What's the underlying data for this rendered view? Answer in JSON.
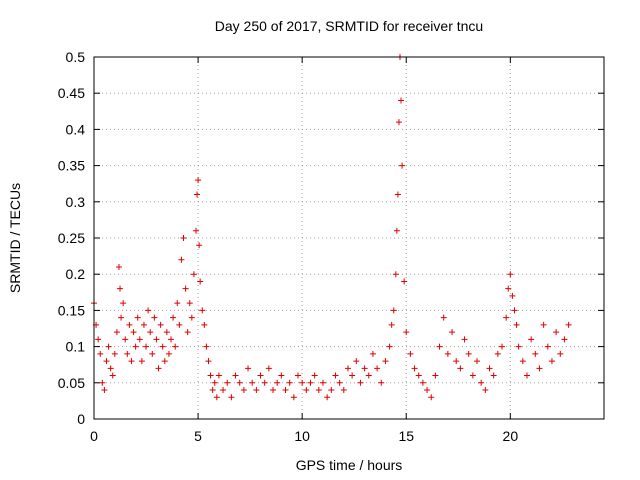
{
  "chart_data": {
    "type": "scatter",
    "title": "Day 250 of 2017, SRMTID for receiver tncu",
    "xlabel": "GPS time / hours",
    "ylabel": "SRMTID / TECUs",
    "xlim": [
      0,
      24.5
    ],
    "ylim": [
      0,
      0.5
    ],
    "x_ticks": [
      0,
      5,
      10,
      15,
      20
    ],
    "x_tick_labels": [
      "0",
      "5",
      "10",
      "15",
      "20"
    ],
    "y_ticks": [
      0,
      0.05,
      0.1,
      0.15,
      0.2,
      0.25,
      0.3,
      0.35,
      0.4,
      0.45,
      0.5
    ],
    "y_tick_labels": [
      "0",
      "0.05",
      "0.1",
      "0.15",
      "0.2",
      "0.25",
      "0.3",
      "0.35",
      "0.4",
      "0.45",
      "0.5"
    ],
    "grid": true,
    "marker": "plus",
    "color": "#e00000",
    "series": [
      {
        "name": "SRMTID",
        "x": [
          0.0,
          0.1,
          0.2,
          0.3,
          0.4,
          0.5,
          0.6,
          0.7,
          0.8,
          0.9,
          1.0,
          1.1,
          1.2,
          1.25,
          1.3,
          1.4,
          1.5,
          1.6,
          1.7,
          1.8,
          1.9,
          2.0,
          2.1,
          2.2,
          2.3,
          2.4,
          2.5,
          2.6,
          2.7,
          2.8,
          2.9,
          3.0,
          3.1,
          3.2,
          3.3,
          3.4,
          3.5,
          3.6,
          3.7,
          3.8,
          3.9,
          4.0,
          4.1,
          4.2,
          4.3,
          4.4,
          4.5,
          4.6,
          4.7,
          4.8,
          4.9,
          4.95,
          5.0,
          5.05,
          5.1,
          5.2,
          5.3,
          5.4,
          5.5,
          5.6,
          5.7,
          5.8,
          5.9,
          6.0,
          6.2,
          6.4,
          6.6,
          6.8,
          7.0,
          7.2,
          7.4,
          7.6,
          7.8,
          8.0,
          8.2,
          8.4,
          8.6,
          8.8,
          9.0,
          9.2,
          9.4,
          9.6,
          9.8,
          10.0,
          10.2,
          10.4,
          10.6,
          10.8,
          11.0,
          11.2,
          11.4,
          11.6,
          11.8,
          12.0,
          12.2,
          12.4,
          12.6,
          12.8,
          13.0,
          13.2,
          13.4,
          13.6,
          13.8,
          14.0,
          14.2,
          14.3,
          14.4,
          14.5,
          14.55,
          14.6,
          14.65,
          14.7,
          14.75,
          14.8,
          14.9,
          15.0,
          15.2,
          15.4,
          15.6,
          15.8,
          16.0,
          16.2,
          16.4,
          16.6,
          16.8,
          17.0,
          17.2,
          17.4,
          17.6,
          17.8,
          18.0,
          18.2,
          18.4,
          18.6,
          18.8,
          19.0,
          19.2,
          19.4,
          19.6,
          19.8,
          19.9,
          20.0,
          20.1,
          20.2,
          20.3,
          20.4,
          20.6,
          20.8,
          21.0,
          21.2,
          21.4,
          21.6,
          21.8,
          22.0,
          22.2,
          22.4,
          22.6,
          22.8
        ],
        "y": [
          0.16,
          0.13,
          0.11,
          0.09,
          0.05,
          0.04,
          0.08,
          0.1,
          0.07,
          0.06,
          0.09,
          0.12,
          0.21,
          0.18,
          0.14,
          0.16,
          0.11,
          0.09,
          0.13,
          0.08,
          0.12,
          0.1,
          0.14,
          0.11,
          0.08,
          0.13,
          0.1,
          0.15,
          0.12,
          0.09,
          0.14,
          0.11,
          0.07,
          0.13,
          0.1,
          0.08,
          0.12,
          0.09,
          0.11,
          0.14,
          0.1,
          0.16,
          0.13,
          0.22,
          0.25,
          0.18,
          0.12,
          0.16,
          0.14,
          0.2,
          0.26,
          0.31,
          0.33,
          0.24,
          0.19,
          0.15,
          0.13,
          0.1,
          0.08,
          0.06,
          0.04,
          0.05,
          0.03,
          0.06,
          0.04,
          0.05,
          0.03,
          0.06,
          0.05,
          0.04,
          0.07,
          0.05,
          0.04,
          0.06,
          0.05,
          0.07,
          0.04,
          0.05,
          0.06,
          0.04,
          0.05,
          0.03,
          0.06,
          0.05,
          0.04,
          0.05,
          0.06,
          0.04,
          0.05,
          0.03,
          0.04,
          0.06,
          0.05,
          0.04,
          0.07,
          0.06,
          0.08,
          0.05,
          0.07,
          0.06,
          0.09,
          0.07,
          0.05,
          0.08,
          0.1,
          0.13,
          0.15,
          0.2,
          0.26,
          0.31,
          0.41,
          0.5,
          0.44,
          0.35,
          0.19,
          0.12,
          0.09,
          0.07,
          0.06,
          0.05,
          0.04,
          0.03,
          0.06,
          0.1,
          0.14,
          0.09,
          0.12,
          0.08,
          0.07,
          0.11,
          0.09,
          0.06,
          0.08,
          0.05,
          0.04,
          0.07,
          0.06,
          0.09,
          0.1,
          0.14,
          0.18,
          0.2,
          0.17,
          0.15,
          0.13,
          0.1,
          0.08,
          0.06,
          0.11,
          0.09,
          0.07,
          0.13,
          0.1,
          0.08,
          0.12,
          0.09,
          0.11,
          0.13
        ]
      }
    ]
  }
}
